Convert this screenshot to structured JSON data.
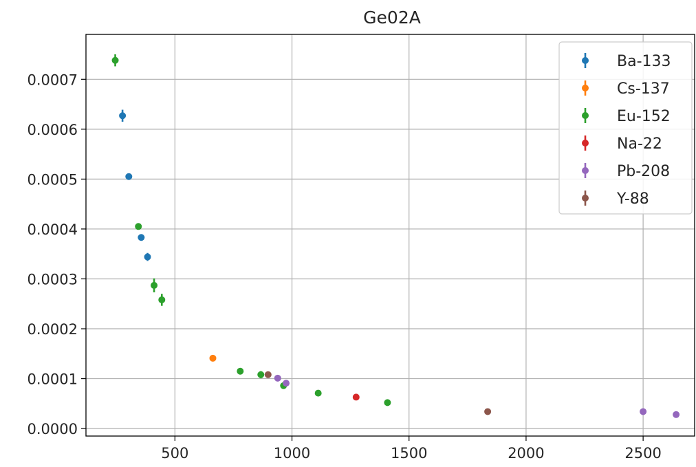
{
  "chart_data": {
    "type": "scatter",
    "title": "Ge02A",
    "xlabel": "",
    "ylabel": "",
    "xlim": [
      120,
      2720
    ],
    "ylim": [
      -1.5e-05,
      0.00079
    ],
    "xticks": [
      500,
      1000,
      1500,
      2000,
      2500
    ],
    "xtick_labels": [
      "500",
      "1000",
      "1500",
      "2000",
      "2500"
    ],
    "yticks": [
      0.0,
      0.0001,
      0.0002,
      0.0003,
      0.0004,
      0.0005,
      0.0006,
      0.0007
    ],
    "ytick_labels": [
      "0.0000",
      "0.0001",
      "0.0002",
      "0.0003",
      "0.0004",
      "0.0005",
      "0.0006",
      "0.0007"
    ],
    "grid": true,
    "legend_position": "top-right",
    "series": [
      {
        "name": "Ba-133",
        "color": "#1f77b4",
        "points": [
          {
            "x": 276,
            "y": 0.000627,
            "err": 1.2e-05
          },
          {
            "x": 303,
            "y": 0.000505,
            "err": 6e-06
          },
          {
            "x": 356,
            "y": 0.000383,
            "err": 5e-06
          },
          {
            "x": 383,
            "y": 0.000344,
            "err": 8e-06
          }
        ]
      },
      {
        "name": "Cs-137",
        "color": "#ff7f0e",
        "points": [
          {
            "x": 662,
            "y": 0.000141,
            "err": 3e-06
          }
        ]
      },
      {
        "name": "Eu-152",
        "color": "#2ca02c",
        "points": [
          {
            "x": 245,
            "y": 0.000738,
            "err": 1.2e-05
          },
          {
            "x": 344,
            "y": 0.000405,
            "err": 5e-06
          },
          {
            "x": 411,
            "y": 0.000287,
            "err": 1.4e-05
          },
          {
            "x": 444,
            "y": 0.000258,
            "err": 1.2e-05
          },
          {
            "x": 779,
            "y": 0.000115,
            "err": 3e-06
          },
          {
            "x": 867,
            "y": 0.000108,
            "err": 7e-06
          },
          {
            "x": 964,
            "y": 8.6e-05,
            "err": 5e-06
          },
          {
            "x": 1112,
            "y": 7.1e-05,
            "err": 3e-06
          },
          {
            "x": 1408,
            "y": 5.2e-05,
            "err": 3e-06
          }
        ]
      },
      {
        "name": "Na-22",
        "color": "#d62728",
        "points": [
          {
            "x": 1274,
            "y": 6.3e-05,
            "err": 3e-06
          }
        ]
      },
      {
        "name": "Pb-208",
        "color": "#9467bd",
        "points": [
          {
            "x": 939,
            "y": 0.000101,
            "err": 3e-06
          },
          {
            "x": 975,
            "y": 9.1e-05,
            "err": 6e-06
          },
          {
            "x": 2500,
            "y": 3.4e-05,
            "err": 2e-06
          },
          {
            "x": 2641,
            "y": 2.8e-05,
            "err": 2e-06
          }
        ]
      },
      {
        "name": "Y-88",
        "color": "#8c564b",
        "points": [
          {
            "x": 898,
            "y": 0.000108,
            "err": 3e-06
          },
          {
            "x": 1836,
            "y": 3.4e-05,
            "err": 2e-06
          }
        ]
      }
    ]
  }
}
